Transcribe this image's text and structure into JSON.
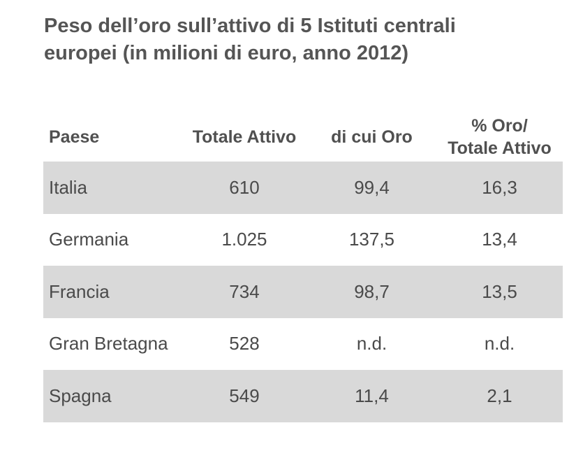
{
  "title": {
    "line1": "Peso dell’oro sull’attivo di 5 Istituti centrali",
    "line2": "europei (in milioni di euro, anno 2012)"
  },
  "chart_data": {
    "type": "table",
    "title": "Peso dell’oro sull’attivo di 5 Istituti centrali europei (in milioni di euro, anno 2012)",
    "columns": [
      "Paese",
      "Totale Attivo",
      "di cui Oro",
      "% Oro/ Totale Attivo"
    ],
    "header_lines": {
      "paese": "Paese",
      "totale_attivo": "Totale Attivo",
      "di_cui_oro": "di cui Oro",
      "pct_line1": "% Oro/",
      "pct_line2": "Totale Attivo"
    },
    "rows": [
      [
        "Italia",
        "610",
        "99,4",
        "16,3"
      ],
      [
        "Germania",
        "1.025",
        "137,5",
        "13,4"
      ],
      [
        "Francia",
        "734",
        "98,7",
        "13,5"
      ],
      [
        "Gran Bretagna",
        "528",
        "n.d.",
        "n.d."
      ],
      [
        "Spagna",
        "549",
        "11,4",
        "2,1"
      ]
    ],
    "row_shading": "alternating, first row shaded",
    "colors": {
      "shaded_row": "#d9d9d9",
      "title_text": "#555555",
      "body_text": "#4a4a4a"
    }
  }
}
